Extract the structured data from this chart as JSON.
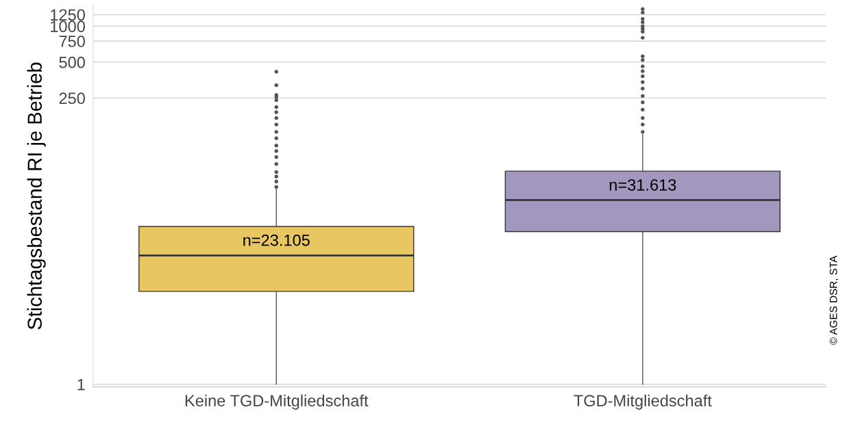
{
  "chart_data": {
    "type": "box",
    "ylabel": "Stichtagsbestand RI je Betrieb",
    "categories": [
      "Keine TGD-Mitgliedschaft",
      "TGD-Mitgliedschaft"
    ],
    "colors": [
      "#e8c763",
      "#a397bf"
    ],
    "boxes": [
      {
        "low": 1,
        "q1": 6,
        "median": 12,
        "q3": 21,
        "high": 43,
        "outliers": [
          45,
          50,
          55,
          60,
          70,
          80,
          90,
          100,
          115,
          130,
          150,
          170,
          190,
          210,
          240,
          255,
          265,
          320,
          415
        ]
      },
      {
        "low": 1,
        "q1": 19,
        "median": 35,
        "q3": 61,
        "high": 124,
        "outliers": [
          130,
          150,
          170,
          200,
          230,
          260,
          300,
          340,
          380,
          420,
          460,
          520,
          560,
          800,
          900,
          950,
          1000,
          1080,
          1150,
          1300,
          1390
        ]
      }
    ],
    "log": "y",
    "ylim": [
      0.95,
      1500
    ],
    "yticks": [
      1,
      250,
      500,
      750,
      1000,
      1250
    ],
    "grid": "y",
    "annotations": [
      "n=23.105",
      "n=31.613",
      "© AGES DSR, STA"
    ]
  }
}
